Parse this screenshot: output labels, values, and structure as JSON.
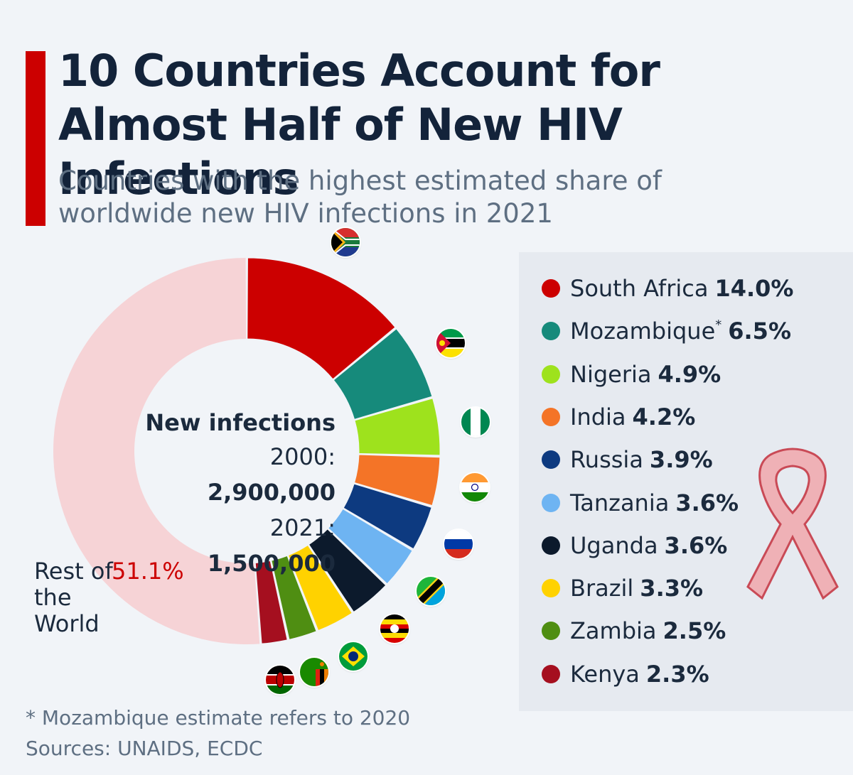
{
  "header": {
    "title": "10 Countries Account for Almost Half of New HIV Infections",
    "subtitle": "Countries with the highest estimated share of worldwide new HIV infections in 2021"
  },
  "colors": {
    "accent": "#cc0000",
    "rest": "#f6d3d6",
    "text": "#1b2a3d",
    "muted": "#5e6f82"
  },
  "center": {
    "label": "New infections",
    "rows": [
      {
        "year": "2000:",
        "value": "2,900,000"
      },
      {
        "year": "2021:",
        "value": "1,500,000"
      }
    ]
  },
  "rest": {
    "label": "Rest of the World",
    "value": "51.1%"
  },
  "chart_data": {
    "type": "pie",
    "variant": "donut",
    "title": "10 Countries Account for Almost Half of New HIV Infections",
    "unit": "%",
    "slices": [
      {
        "name": "South Africa",
        "value": 14.0,
        "display": "14.0%",
        "color": "#cc0000",
        "flag": "south-africa-flag"
      },
      {
        "name": "Mozambique",
        "note": "*",
        "value": 6.5,
        "display": "6.5%",
        "color": "#168a7b",
        "flag": "mozambique-flag"
      },
      {
        "name": "Nigeria",
        "value": 4.9,
        "display": "4.9%",
        "color": "#9ee21d",
        "flag": "nigeria-flag"
      },
      {
        "name": "India",
        "value": 4.2,
        "display": "4.2%",
        "color": "#f47427",
        "flag": "india-flag"
      },
      {
        "name": "Russia",
        "value": 3.9,
        "display": "3.9%",
        "color": "#0d3a80",
        "flag": "russia-flag"
      },
      {
        "name": "Tanzania",
        "value": 3.6,
        "display": "3.6%",
        "color": "#6eb4f2",
        "flag": "tanzania-flag"
      },
      {
        "name": "Uganda",
        "value": 3.6,
        "display": "3.6%",
        "color": "#0c1a2c",
        "flag": "uganda-flag"
      },
      {
        "name": "Brazil",
        "value": 3.3,
        "display": "3.3%",
        "color": "#ffd200",
        "flag": "brazil-flag"
      },
      {
        "name": "Zambia",
        "value": 2.5,
        "display": "2.5%",
        "color": "#4f8e12",
        "flag": "zambia-flag"
      },
      {
        "name": "Kenya",
        "value": 2.3,
        "display": "2.3%",
        "color": "#a50f1f",
        "flag": "kenya-flag"
      },
      {
        "name": "Rest of the World",
        "value": 51.1,
        "display": "51.1%",
        "color": "#f6d3d6"
      }
    ]
  },
  "footer": {
    "footnote": "* Mozambique estimate refers to 2020",
    "sources": "Sources: UNAIDS, ECDC"
  }
}
